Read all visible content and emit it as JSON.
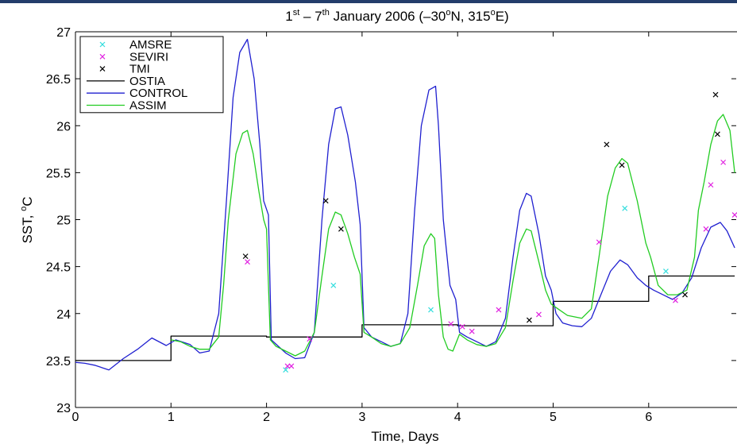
{
  "chart_data": {
    "type": "line",
    "title_html": [
      "1",
      "st",
      " – 7",
      "th",
      " January 2006 (–30",
      "o",
      "N, 315",
      "o",
      "E)"
    ],
    "xlabel": "Time, Days",
    "ylabel": [
      "SST, ",
      "o",
      "C"
    ],
    "xlim": [
      0,
      6.9
    ],
    "ylim": [
      23,
      27
    ],
    "xticks": [
      "0",
      "1",
      "2",
      "3",
      "4",
      "5",
      "6"
    ],
    "yticks": [
      "23",
      "23.5",
      "24",
      "24.5",
      "25",
      "25.5",
      "26",
      "26.5",
      "27"
    ],
    "grid": false,
    "legend_position": "top-left",
    "colors": {
      "AMSRE": "#33dddd",
      "SEVIRI": "#e020e0",
      "TMI": "#000000",
      "OSTIA": "#000000",
      "CONTROL": "#2020d0",
      "ASSIM": "#22cc22"
    },
    "legend": [
      {
        "name": "AMSRE",
        "kind": "marker"
      },
      {
        "name": "SEVIRI",
        "kind": "marker"
      },
      {
        "name": "TMI",
        "kind": "marker"
      },
      {
        "name": "OSTIA",
        "kind": "line"
      },
      {
        "name": "CONTROL",
        "kind": "line"
      },
      {
        "name": "ASSIM",
        "kind": "line"
      }
    ],
    "series": [
      {
        "name": "OSTIA",
        "kind": "step",
        "points": [
          [
            0,
            23.5
          ],
          [
            1.0,
            23.5
          ],
          [
            1.0,
            23.76
          ],
          [
            2.0,
            23.76
          ],
          [
            2.0,
            23.75
          ],
          [
            3.0,
            23.75
          ],
          [
            3.0,
            23.88
          ],
          [
            4.0,
            23.88
          ],
          [
            4.0,
            23.87
          ],
          [
            5.0,
            23.87
          ],
          [
            5.0,
            24.13
          ],
          [
            6.0,
            24.13
          ],
          [
            6.0,
            24.4
          ],
          [
            6.9,
            24.4
          ]
        ]
      },
      {
        "name": "CONTROL",
        "kind": "line",
        "points": [
          [
            0,
            23.48
          ],
          [
            0.1,
            23.47
          ],
          [
            0.2,
            23.45
          ],
          [
            0.35,
            23.4
          ],
          [
            0.5,
            23.52
          ],
          [
            0.65,
            23.62
          ],
          [
            0.8,
            23.74
          ],
          [
            0.95,
            23.66
          ],
          [
            1.05,
            23.72
          ],
          [
            1.2,
            23.67
          ],
          [
            1.3,
            23.58
          ],
          [
            1.4,
            23.6
          ],
          [
            1.5,
            24.0
          ],
          [
            1.58,
            25.2
          ],
          [
            1.65,
            26.3
          ],
          [
            1.72,
            26.78
          ],
          [
            1.8,
            26.92
          ],
          [
            1.87,
            26.5
          ],
          [
            1.93,
            25.8
          ],
          [
            1.97,
            25.2
          ],
          [
            2.02,
            25.05
          ],
          [
            2.05,
            23.72
          ],
          [
            2.2,
            23.58
          ],
          [
            2.3,
            23.52
          ],
          [
            2.4,
            23.53
          ],
          [
            2.5,
            23.8
          ],
          [
            2.58,
            25.0
          ],
          [
            2.65,
            25.8
          ],
          [
            2.72,
            26.18
          ],
          [
            2.78,
            26.2
          ],
          [
            2.85,
            25.9
          ],
          [
            2.93,
            25.4
          ],
          [
            2.98,
            24.95
          ],
          [
            3.02,
            23.85
          ],
          [
            3.1,
            23.75
          ],
          [
            3.2,
            23.7
          ],
          [
            3.3,
            23.65
          ],
          [
            3.4,
            23.68
          ],
          [
            3.48,
            24.0
          ],
          [
            3.55,
            25.1
          ],
          [
            3.62,
            26.0
          ],
          [
            3.7,
            26.38
          ],
          [
            3.77,
            26.42
          ],
          [
            3.8,
            26.0
          ],
          [
            3.85,
            25.0
          ],
          [
            3.92,
            24.3
          ],
          [
            3.98,
            24.15
          ],
          [
            4.02,
            23.8
          ],
          [
            4.1,
            23.75
          ],
          [
            4.2,
            23.7
          ],
          [
            4.3,
            23.65
          ],
          [
            4.4,
            23.7
          ],
          [
            4.5,
            23.95
          ],
          [
            4.58,
            24.6
          ],
          [
            4.65,
            25.1
          ],
          [
            4.72,
            25.28
          ],
          [
            4.77,
            25.25
          ],
          [
            4.85,
            24.85
          ],
          [
            4.92,
            24.4
          ],
          [
            4.98,
            24.25
          ],
          [
            5.03,
            24.0
          ],
          [
            5.1,
            23.9
          ],
          [
            5.2,
            23.87
          ],
          [
            5.3,
            23.86
          ],
          [
            5.4,
            23.95
          ],
          [
            5.5,
            24.2
          ],
          [
            5.6,
            24.45
          ],
          [
            5.7,
            24.57
          ],
          [
            5.78,
            24.52
          ],
          [
            5.88,
            24.38
          ],
          [
            5.97,
            24.3
          ],
          [
            6.05,
            24.25
          ],
          [
            6.15,
            24.2
          ],
          [
            6.25,
            24.15
          ],
          [
            6.35,
            24.22
          ],
          [
            6.45,
            24.38
          ],
          [
            6.55,
            24.7
          ],
          [
            6.65,
            24.92
          ],
          [
            6.75,
            24.97
          ],
          [
            6.82,
            24.88
          ],
          [
            6.9,
            24.7
          ]
        ]
      },
      {
        "name": "ASSIM",
        "kind": "line",
        "points": [
          [
            1.0,
            23.72
          ],
          [
            1.1,
            23.7
          ],
          [
            1.2,
            23.65
          ],
          [
            1.3,
            23.62
          ],
          [
            1.4,
            23.62
          ],
          [
            1.5,
            23.75
          ],
          [
            1.55,
            24.3
          ],
          [
            1.6,
            25.0
          ],
          [
            1.68,
            25.7
          ],
          [
            1.75,
            25.92
          ],
          [
            1.8,
            25.95
          ],
          [
            1.86,
            25.7
          ],
          [
            1.92,
            25.3
          ],
          [
            1.97,
            25.0
          ],
          [
            2.0,
            24.9
          ],
          [
            2.04,
            23.72
          ],
          [
            2.1,
            23.65
          ],
          [
            2.2,
            23.6
          ],
          [
            2.3,
            23.55
          ],
          [
            2.4,
            23.6
          ],
          [
            2.5,
            23.8
          ],
          [
            2.58,
            24.4
          ],
          [
            2.65,
            24.9
          ],
          [
            2.72,
            25.08
          ],
          [
            2.78,
            25.05
          ],
          [
            2.85,
            24.85
          ],
          [
            2.92,
            24.6
          ],
          [
            2.98,
            24.42
          ],
          [
            3.02,
            23.8
          ],
          [
            3.1,
            23.75
          ],
          [
            3.2,
            23.68
          ],
          [
            3.3,
            23.65
          ],
          [
            3.4,
            23.68
          ],
          [
            3.5,
            23.85
          ],
          [
            3.58,
            24.3
          ],
          [
            3.65,
            24.72
          ],
          [
            3.72,
            24.85
          ],
          [
            3.76,
            24.8
          ],
          [
            3.8,
            24.2
          ],
          [
            3.85,
            23.75
          ],
          [
            3.9,
            23.62
          ],
          [
            3.95,
            23.6
          ],
          [
            4.02,
            23.78
          ],
          [
            4.1,
            23.72
          ],
          [
            4.2,
            23.67
          ],
          [
            4.3,
            23.65
          ],
          [
            4.4,
            23.68
          ],
          [
            4.5,
            23.85
          ],
          [
            4.58,
            24.35
          ],
          [
            4.65,
            24.75
          ],
          [
            4.72,
            24.9
          ],
          [
            4.77,
            24.88
          ],
          [
            4.85,
            24.55
          ],
          [
            4.92,
            24.25
          ],
          [
            4.98,
            24.1
          ],
          [
            5.05,
            24.05
          ],
          [
            5.15,
            23.98
          ],
          [
            5.3,
            23.95
          ],
          [
            5.4,
            24.05
          ],
          [
            5.48,
            24.6
          ],
          [
            5.57,
            25.25
          ],
          [
            5.65,
            25.55
          ],
          [
            5.72,
            25.65
          ],
          [
            5.78,
            25.6
          ],
          [
            5.88,
            25.2
          ],
          [
            5.97,
            24.75
          ],
          [
            6.02,
            24.6
          ],
          [
            6.1,
            24.3
          ],
          [
            6.2,
            24.2
          ],
          [
            6.3,
            24.2
          ],
          [
            6.4,
            24.25
          ],
          [
            6.48,
            24.6
          ],
          [
            6.52,
            25.1
          ],
          [
            6.58,
            25.4
          ],
          [
            6.65,
            25.8
          ],
          [
            6.72,
            26.05
          ],
          [
            6.78,
            26.12
          ],
          [
            6.85,
            25.95
          ],
          [
            6.9,
            25.5
          ]
        ]
      }
    ],
    "markers": {
      "AMSRE": [
        [
          2.2,
          23.4
        ],
        [
          2.7,
          24.3
        ],
        [
          3.72,
          24.04
        ],
        [
          5.75,
          25.12
        ],
        [
          6.18,
          24.45
        ]
      ],
      "SEVIRI": [
        [
          1.8,
          24.55
        ],
        [
          2.22,
          23.44
        ],
        [
          2.26,
          23.44
        ],
        [
          2.45,
          23.73
        ],
        [
          3.93,
          23.89
        ],
        [
          4.05,
          23.86
        ],
        [
          4.15,
          23.81
        ],
        [
          4.43,
          24.04
        ],
        [
          4.85,
          23.99
        ],
        [
          5.48,
          24.76
        ],
        [
          6.28,
          24.14
        ],
        [
          6.6,
          24.9
        ],
        [
          6.65,
          25.37
        ],
        [
          6.78,
          25.61
        ],
        [
          6.9,
          25.05
        ]
      ],
      "TMI": [
        [
          1.78,
          24.61
        ],
        [
          2.62,
          25.2
        ],
        [
          2.78,
          24.9
        ],
        [
          4.75,
          23.93
        ],
        [
          5.56,
          25.8
        ],
        [
          5.72,
          25.58
        ],
        [
          6.38,
          24.2
        ],
        [
          6.7,
          26.33
        ],
        [
          6.72,
          25.91
        ]
      ]
    }
  }
}
